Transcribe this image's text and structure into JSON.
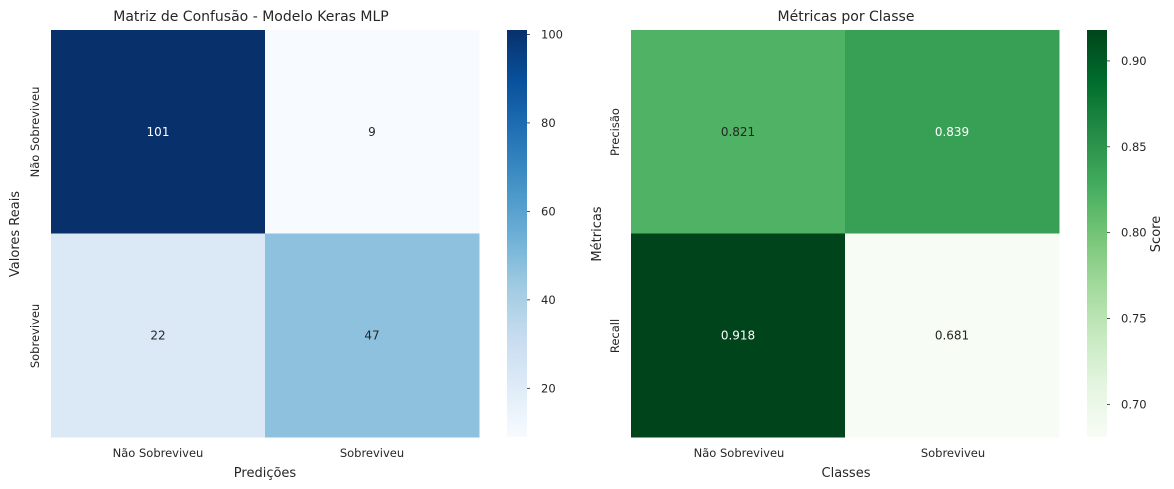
{
  "chart_data": [
    {
      "type": "heatmap",
      "title": "Matriz de Confusão - Modelo Keras MLP",
      "xlabel": "Predições",
      "ylabel": "Valores Reais",
      "x_categories": [
        "Não Sobreviveu",
        "Sobreviveu"
      ],
      "y_categories": [
        "Não Sobreviveu",
        "Sobreviveu"
      ],
      "values": [
        [
          101,
          9
        ],
        [
          22,
          47
        ]
      ],
      "value_labels": [
        "101",
        "9",
        "22",
        "47"
      ],
      "colormap": "Blues",
      "vmin": 9,
      "vmax": 101,
      "colorbar_ticks": [
        20,
        40,
        60,
        80,
        100
      ],
      "colorbar_tick_labels": [
        "20",
        "40",
        "60",
        "80",
        "100"
      ],
      "colorbar_label": ""
    },
    {
      "type": "heatmap",
      "title": "Métricas por Classe",
      "xlabel": "Classes",
      "ylabel": "Métricas",
      "x_categories": [
        "Não Sobreviveu",
        "Sobreviveu"
      ],
      "y_categories": [
        "Precisão",
        "Recall"
      ],
      "values": [
        [
          0.821,
          0.839
        ],
        [
          0.918,
          0.681
        ]
      ],
      "value_labels": [
        "0.821",
        "0.839",
        "0.918",
        "0.681"
      ],
      "colormap": "Greens",
      "vmin": 0.681,
      "vmax": 0.918,
      "colorbar_ticks": [
        0.7,
        0.75,
        0.8,
        0.85,
        0.9
      ],
      "colorbar_tick_labels": [
        "0.70",
        "0.75",
        "0.80",
        "0.85",
        "0.90"
      ],
      "colorbar_label": "Score"
    }
  ],
  "colors": {
    "blues": [
      "#f7fbff",
      "#deebf7",
      "#c6dbef",
      "#9ecae1",
      "#6baed6",
      "#4292c6",
      "#2171b5",
      "#08519c",
      "#08306b"
    ],
    "greens": [
      "#f7fcf5",
      "#e5f5e0",
      "#c7e9c0",
      "#a1d99b",
      "#74c476",
      "#41ab5d",
      "#238b45",
      "#006d2c",
      "#00441b"
    ]
  }
}
